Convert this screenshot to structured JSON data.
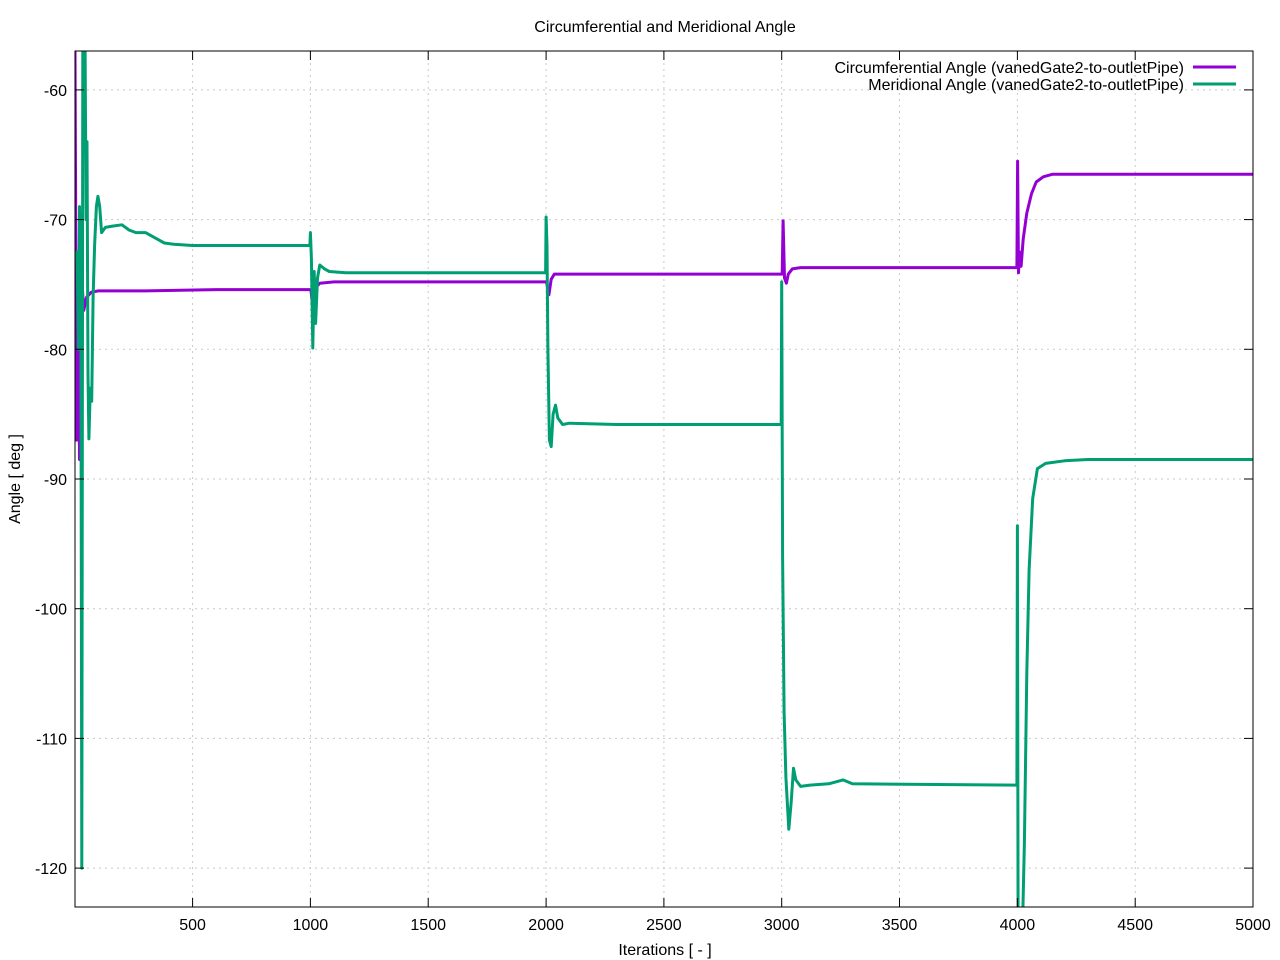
{
  "chart_data": {
    "type": "line",
    "title": "Circumferential and Meridional Angle",
    "xlabel": "Iterations [ - ]",
    "ylabel": "Angle [ deg ]",
    "xlim": [
      1,
      5000
    ],
    "ylim": [
      -123,
      -57
    ],
    "xticks": [
      500,
      1000,
      1500,
      2000,
      2500,
      3000,
      3500,
      4000,
      4500,
      5000
    ],
    "yticks": [
      -60,
      -70,
      -80,
      -90,
      -100,
      -110,
      -120
    ],
    "grid": true,
    "legend_position": "top-right",
    "series": [
      {
        "name": "Circumferential Angle (vanedGate2-to-outletPipe)",
        "color": "#9400d3",
        "points": [
          [
            1,
            -57
          ],
          [
            8,
            -87
          ],
          [
            14,
            -72.8
          ],
          [
            20,
            -88.5
          ],
          [
            28,
            -74
          ],
          [
            38,
            -77
          ],
          [
            50,
            -76
          ],
          [
            70,
            -75.6
          ],
          [
            100,
            -75.5
          ],
          [
            300,
            -75.5
          ],
          [
            600,
            -75.4
          ],
          [
            998,
            -75.4
          ],
          [
            1002,
            -75.4
          ],
          [
            1010,
            -76.8
          ],
          [
            1018,
            -76
          ],
          [
            1025,
            -75.2
          ],
          [
            1040,
            -74.9
          ],
          [
            1100,
            -74.8
          ],
          [
            1500,
            -74.8
          ],
          [
            1998,
            -74.8
          ],
          [
            2002,
            -74.8
          ],
          [
            2012,
            -75.8
          ],
          [
            2022,
            -74.6
          ],
          [
            2035,
            -74.2
          ],
          [
            2100,
            -74.2
          ],
          [
            2500,
            -74.2
          ],
          [
            2998,
            -74.2
          ],
          [
            3002,
            -74.2
          ],
          [
            3006,
            -70.1
          ],
          [
            3012,
            -74.5
          ],
          [
            3020,
            -74.9
          ],
          [
            3028,
            -74.2
          ],
          [
            3045,
            -73.8
          ],
          [
            3080,
            -73.7
          ],
          [
            3500,
            -73.7
          ],
          [
            3998,
            -73.7
          ],
          [
            4001,
            -65.5
          ],
          [
            4005,
            -74.1
          ],
          [
            4010,
            -72.5
          ],
          [
            4016,
            -73.6
          ],
          [
            4025,
            -71.5
          ],
          [
            4040,
            -69.5
          ],
          [
            4060,
            -68
          ],
          [
            4080,
            -67.1
          ],
          [
            4110,
            -66.7
          ],
          [
            4150,
            -66.5
          ],
          [
            4300,
            -66.5
          ],
          [
            5000,
            -66.5
          ]
        ]
      },
      {
        "name": "Meridional Angle (vanedGate2-to-outletPipe)",
        "color": "#009e73",
        "points": [
          [
            1,
            -73
          ],
          [
            10,
            -72.5
          ],
          [
            16,
            -80
          ],
          [
            20,
            -69
          ],
          [
            26,
            -78
          ],
          [
            30,
            -120
          ],
          [
            34,
            -57
          ],
          [
            40,
            -55
          ],
          [
            44,
            -57
          ],
          [
            48,
            -70
          ],
          [
            52,
            -64
          ],
          [
            56,
            -82
          ],
          [
            60,
            -86.9
          ],
          [
            66,
            -83
          ],
          [
            72,
            -84
          ],
          [
            78,
            -76
          ],
          [
            84,
            -72
          ],
          [
            92,
            -69
          ],
          [
            98,
            -68.2
          ],
          [
            106,
            -69
          ],
          [
            114,
            -71
          ],
          [
            130,
            -70.6
          ],
          [
            160,
            -70.5
          ],
          [
            200,
            -70.4
          ],
          [
            230,
            -70.8
          ],
          [
            260,
            -71
          ],
          [
            280,
            -71
          ],
          [
            300,
            -71
          ],
          [
            320,
            -71.2
          ],
          [
            350,
            -71.5
          ],
          [
            380,
            -71.8
          ],
          [
            420,
            -71.9
          ],
          [
            500,
            -72
          ],
          [
            700,
            -72
          ],
          [
            998,
            -72
          ],
          [
            1000,
            -71
          ],
          [
            1004,
            -73
          ],
          [
            1010,
            -79.9
          ],
          [
            1016,
            -74
          ],
          [
            1022,
            -78
          ],
          [
            1030,
            -74.5
          ],
          [
            1040,
            -73.5
          ],
          [
            1060,
            -73.8
          ],
          [
            1080,
            -74
          ],
          [
            1150,
            -74.1
          ],
          [
            1300,
            -74.1
          ],
          [
            1500,
            -74.1
          ],
          [
            1998,
            -74.1
          ],
          [
            2000,
            -69.8
          ],
          [
            2004,
            -72
          ],
          [
            2008,
            -80
          ],
          [
            2014,
            -87
          ],
          [
            2022,
            -87.5
          ],
          [
            2030,
            -85
          ],
          [
            2040,
            -84.3
          ],
          [
            2050,
            -85.3
          ],
          [
            2070,
            -85.8
          ],
          [
            2100,
            -85.7
          ],
          [
            2300,
            -85.8
          ],
          [
            2600,
            -85.8
          ],
          [
            2998,
            -85.8
          ],
          [
            3000,
            -74.8
          ],
          [
            3004,
            -96
          ],
          [
            3010,
            -108
          ],
          [
            3018,
            -113
          ],
          [
            3030,
            -117
          ],
          [
            3040,
            -115
          ],
          [
            3050,
            -112.3
          ],
          [
            3060,
            -113.2
          ],
          [
            3080,
            -113.7
          ],
          [
            3120,
            -113.6
          ],
          [
            3200,
            -113.5
          ],
          [
            3260,
            -113.2
          ],
          [
            3300,
            -113.5
          ],
          [
            3998,
            -113.6
          ],
          [
            4000,
            -93.6
          ],
          [
            4003,
            -125
          ],
          [
            4010,
            -128
          ],
          [
            4020,
            -126
          ],
          [
            4030,
            -118
          ],
          [
            4040,
            -105
          ],
          [
            4050,
            -97
          ],
          [
            4065,
            -91.5
          ],
          [
            4085,
            -89.2
          ],
          [
            4120,
            -88.8
          ],
          [
            4200,
            -88.6
          ],
          [
            4300,
            -88.5
          ],
          [
            5000,
            -88.5
          ]
        ]
      }
    ]
  }
}
